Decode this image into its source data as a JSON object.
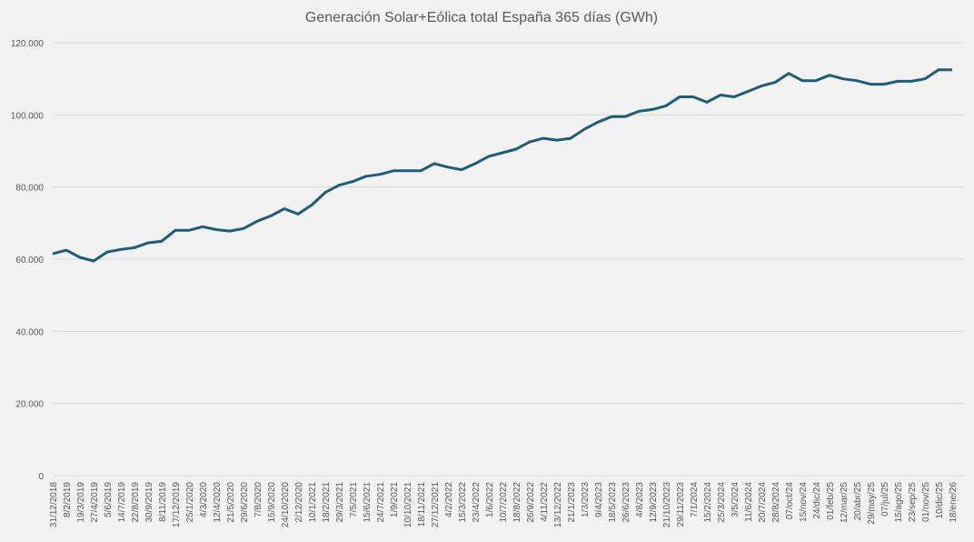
{
  "chart_data": {
    "type": "line",
    "title": "Generación Solar+Eólica total España 365 días (GWh)",
    "categories": [
      "31/12/2018",
      "8/2/2019",
      "19/3/2019",
      "27/4/2019",
      "5/6/2019",
      "14/7/2019",
      "22/8/2019",
      "30/9/2019",
      "8/11/2019",
      "17/12/2019",
      "25/1/2020",
      "4/3/2020",
      "12/4/2020",
      "21/5/2020",
      "29/6/2020",
      "7/8/2020",
      "15/9/2020",
      "24/10/2020",
      "2/12/2020",
      "10/1/2021",
      "18/2/2021",
      "29/3/2021",
      "7/5/2021",
      "15/6/2021",
      "24/7/2021",
      "1/9/2021",
      "10/10/2021",
      "18/11/2021",
      "27/12/2021",
      "4/2/2022",
      "15/3/2022",
      "23/4/2022",
      "1/6/2022",
      "10/7/2022",
      "18/8/2022",
      "26/9/2022",
      "4/11/2022",
      "13/12/2022",
      "21/1/2023",
      "1/3/2023",
      "9/4/2023",
      "18/5/2023",
      "26/6/2023",
      "4/8/2023",
      "12/9/2023",
      "21/10/2023",
      "29/11/2023",
      "7/1/2024",
      "15/2/2024",
      "25/3/2024",
      "3/5/2024",
      "11/6/2024",
      "20/7/2024",
      "28/8/2024",
      "07/oct/24",
      "15/nov/24",
      "24/dic/24",
      "01/feb/25",
      "12/mar/25",
      "20/abr/25",
      "29/may/25",
      "07/jul/25",
      "15/ago/25",
      "23/sep/25",
      "01/nov/25",
      "10/dic/25",
      "18/ene/26"
    ],
    "values": [
      61500,
      62500,
      60500,
      59500,
      62000,
      62700,
      63200,
      64500,
      65000,
      68000,
      68000,
      69000,
      68200,
      67800,
      68500,
      70500,
      72000,
      74000,
      72500,
      75000,
      78500,
      80500,
      81500,
      83000,
      83500,
      84500,
      84500,
      84500,
      86500,
      85500,
      84800,
      86500,
      88500,
      89500,
      90500,
      92500,
      93500,
      93000,
      93500,
      96000,
      98000,
      99500,
      99500,
      101000,
      101500,
      102500,
      105000,
      105000,
      103500,
      105500,
      105000,
      106500,
      108000,
      109000,
      111500,
      109500,
      109500,
      111000,
      110000,
      109500,
      108500,
      108500,
      109300,
      109300,
      110000,
      112500,
      112500
    ],
    "color": "#1f5c7a",
    "ylim": [
      0,
      120000
    ],
    "yticks": [
      0,
      {
        "value": 20000,
        "label": "20.000"
      },
      {
        "value": 40000,
        "label": "40.000"
      },
      {
        "value": 60000,
        "label": "60.000"
      },
      {
        "value": 80000,
        "label": "80.000"
      },
      {
        "value": 100000,
        "label": "100.000"
      },
      {
        "value": 120000,
        "label": "120.000"
      }
    ],
    "grid": true
  }
}
